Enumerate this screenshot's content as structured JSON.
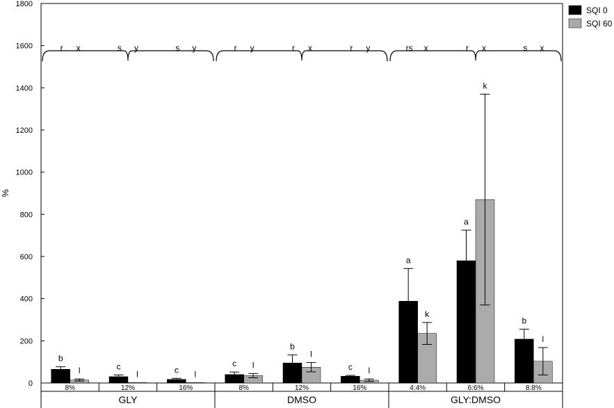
{
  "chart_data": {
    "type": "bar",
    "ylabel": "%",
    "ylim": [
      0,
      1800
    ],
    "yticks": [
      0,
      200,
      400,
      600,
      800,
      1000,
      1200,
      1400,
      1600,
      1800
    ],
    "grid": false,
    "legend_position": "top-right",
    "groups": [
      {
        "label": "GLY",
        "categories": [
          "8%",
          "12%",
          "16%"
        ],
        "top_letters": [
          [
            "r",
            "x"
          ],
          [
            "s",
            "y"
          ],
          [
            "s",
            "y"
          ]
        ]
      },
      {
        "label": "DMSO",
        "categories": [
          "8%",
          "12%",
          "16%"
        ],
        "top_letters": [
          [
            "r",
            "y"
          ],
          [
            "r",
            "x"
          ],
          [
            "r",
            "y"
          ]
        ]
      },
      {
        "label": "GLY:DMSO",
        "categories": [
          "4:4%",
          "6:6%",
          "8:8%"
        ],
        "top_letters": [
          [
            "rs",
            "x"
          ],
          [
            "r",
            "x"
          ],
          [
            "s",
            "x"
          ]
        ]
      }
    ],
    "categories": [
      "8%",
      "12%",
      "16%",
      "8%",
      "12%",
      "16%",
      "4:4%",
      "6:6%",
      "8:8%"
    ],
    "series": [
      {
        "name": "SQI 0",
        "color": "#000000",
        "values": [
          65,
          30,
          17,
          40,
          95,
          32,
          388,
          580,
          208
        ],
        "errors": [
          12,
          8,
          5,
          12,
          38,
          4,
          155,
          145,
          47
        ],
        "letters": [
          "b",
          "c",
          "c",
          "c",
          "b",
          "c",
          "a",
          "a",
          "b"
        ]
      },
      {
        "name": "SQI 60",
        "color": "#aaaaaa",
        "values": [
          14,
          2,
          2,
          35,
          75,
          13,
          235,
          870,
          103
        ],
        "errors": [
          5,
          0,
          0,
          10,
          22,
          6,
          52,
          500,
          65
        ],
        "letters": [
          "l",
          "l",
          "l",
          "l",
          "l",
          "l",
          "k",
          "k",
          "l"
        ]
      }
    ]
  }
}
